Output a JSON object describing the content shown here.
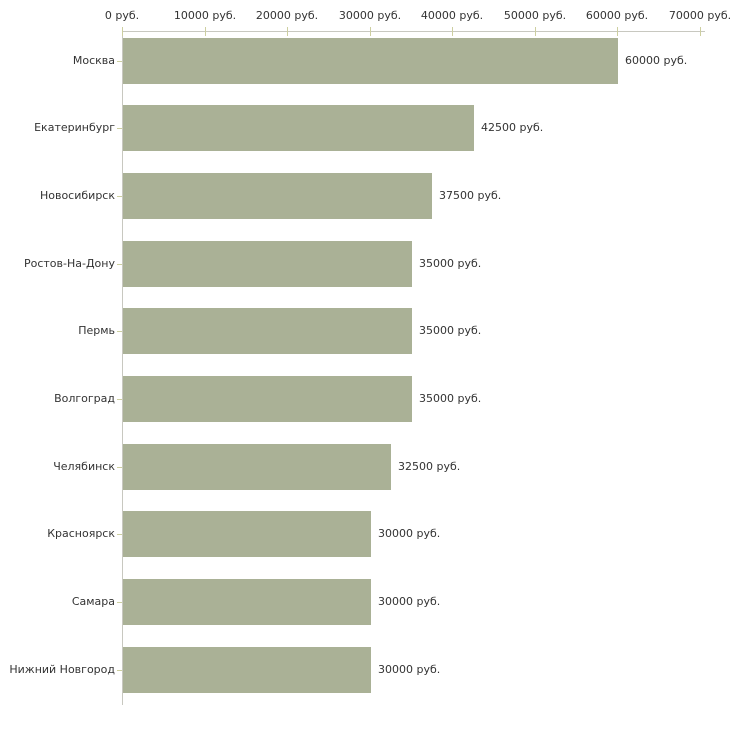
{
  "chart_data": {
    "type": "bar",
    "orientation": "horizontal",
    "unit": "руб.",
    "categories": [
      "Москва",
      "Екатеринбург",
      "Новосибирск",
      "Ростов-На-Дону",
      "Пермь",
      "Волгоград",
      "Челябинск",
      "Красноярск",
      "Самара",
      "Нижний Новгород"
    ],
    "values": [
      60000,
      42500,
      37500,
      35000,
      35000,
      35000,
      32500,
      30000,
      30000,
      30000
    ],
    "value_labels": [
      "60000 руб.",
      "42500 руб.",
      "37500 руб.",
      "35000 руб.",
      "35000 руб.",
      "35000 руб.",
      "32500 руб.",
      "30000 руб.",
      "30000 руб.",
      "30000 руб."
    ],
    "x_axis": {
      "position": "top",
      "xlim": [
        0,
        70000
      ],
      "ticks": [
        0,
        10000,
        20000,
        30000,
        40000,
        50000,
        60000,
        70000
      ],
      "tick_labels": [
        "0 руб.",
        "10000 руб.",
        "20000 руб.",
        "30000 руб.",
        "40000 руб.",
        "50000 руб.",
        "60000 руб.",
        "70000 руб."
      ]
    },
    "grid": false,
    "legend": false
  },
  "colors": {
    "background": "#ffffff",
    "bar_fill": "#aab196",
    "axis_line": "#c8c8c0",
    "tick_mark": "#cdcfa0",
    "label_text": "#333333"
  }
}
